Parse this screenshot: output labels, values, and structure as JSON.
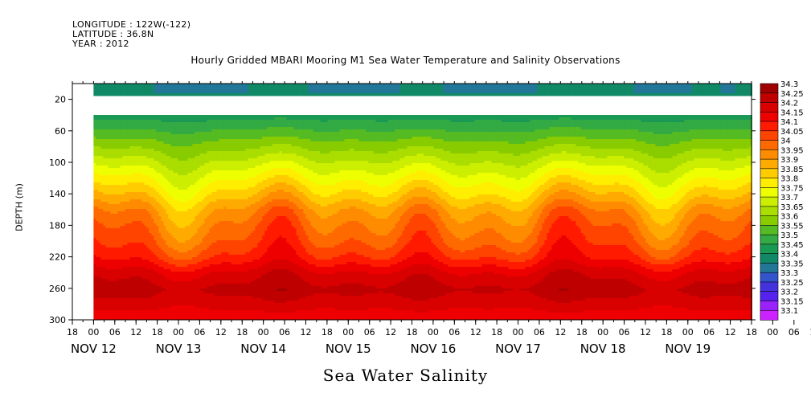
{
  "header": {
    "longitude": "LONGITUDE : 122W(-122)",
    "latitude": "LATITUDE : 36.8N",
    "year": "YEAR : 2012"
  },
  "chart_data": {
    "type": "heatmap",
    "title": "Hourly Gridded MBARI Mooring M1 Sea Water Temperature and Salinity Observations",
    "subtitle": "Sea Water Salinity",
    "ylabel": "DEPTH (m)",
    "xlabel": "",
    "x_range": [
      "2012-11-11T18:00",
      "2012-11-19T18:00"
    ],
    "data_start": "2012-11-12T00:00",
    "ylim": [
      300,
      0
    ],
    "y_ticks": [
      20,
      60,
      100,
      140,
      180,
      220,
      260,
      300
    ],
    "x_hour_ticks": [
      "18",
      "00",
      "06",
      "12",
      "18",
      "00",
      "06",
      "12",
      "18",
      "00",
      "06",
      "12",
      "18",
      "00",
      "06",
      "12",
      "18",
      "00",
      "06",
      "12",
      "18",
      "00",
      "06",
      "12",
      "18",
      "00",
      "06",
      "12",
      "18",
      "00",
      "06",
      "12",
      "18",
      "00",
      "06",
      "12",
      "18",
      "00",
      "06",
      "12",
      "18"
    ],
    "x_day_labels": [
      "NOV 12",
      "NOV 13",
      "NOV 14",
      "NOV 15",
      "NOV 16",
      "NOV 17",
      "NOV 18",
      "NOV 19"
    ],
    "colorbar": {
      "levels": [
        "34.3",
        "34.25",
        "34.2",
        "34.15",
        "34.1",
        "34.05",
        "34",
        "33.95",
        "33.9",
        "33.85",
        "33.8",
        "33.75",
        "33.7",
        "33.65",
        "33.6",
        "33.55",
        "33.5",
        "33.45",
        "33.4",
        "33.35",
        "33.3",
        "33.25",
        "33.2",
        "33.15",
        "33.1"
      ],
      "colors": [
        "#a00000",
        "#bf0000",
        "#d90000",
        "#ee0000",
        "#ff1a00",
        "#ff4400",
        "#ff6a00",
        "#ff8c00",
        "#ffaa00",
        "#ffcc00",
        "#ffee00",
        "#eeff00",
        "#ccee00",
        "#aadd00",
        "#88cc00",
        "#55bb22",
        "#33aa44",
        "#1a9955",
        "#118866",
        "#227799",
        "#3355cc",
        "#4433dd",
        "#5522ee",
        "#9922ff",
        "#cc22ff"
      ]
    },
    "depths": [
      10,
      40,
      60,
      80,
      100,
      120,
      140,
      160,
      180,
      200,
      220,
      240,
      260,
      280,
      300
    ],
    "salinity_profile": [
      33.4,
      33.48,
      33.56,
      33.64,
      33.72,
      33.8,
      33.88,
      33.97,
      34.02,
      34.06,
      34.12,
      34.22,
      34.27,
      34.22,
      34.15
    ],
    "missing_depth_range": [
      14,
      38
    ]
  }
}
